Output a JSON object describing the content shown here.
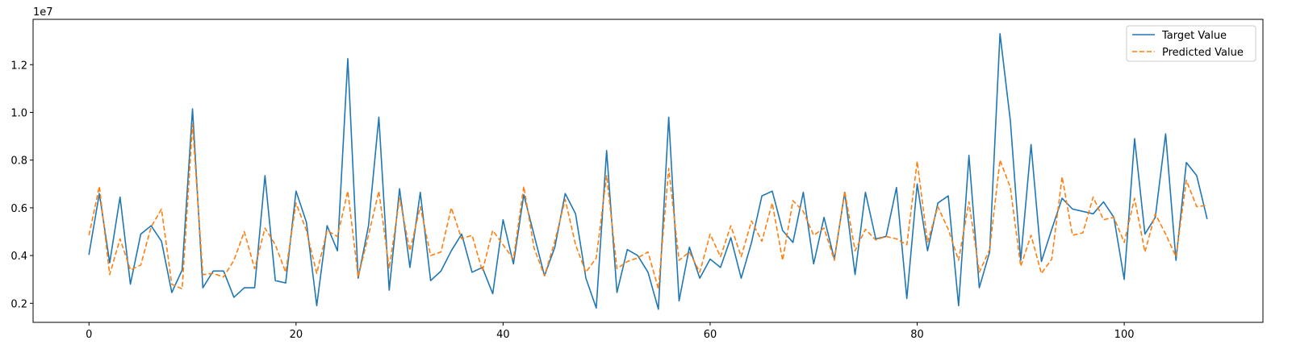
{
  "chart_data": {
    "type": "line",
    "title": "",
    "xlabel": "",
    "ylabel": "",
    "y_offset_label": "1e7",
    "xlim": [
      -5.4,
      113.4
    ],
    "ylim": [
      1200000,
      13900000
    ],
    "x_ticks": [
      0,
      20,
      40,
      60,
      80,
      100
    ],
    "x_tick_labels": [
      "0",
      "20",
      "40",
      "60",
      "80",
      "100"
    ],
    "y_ticks": [
      2000000,
      4000000,
      6000000,
      8000000,
      10000000,
      12000000
    ],
    "y_tick_labels": [
      "0.2",
      "0.4",
      "0.6",
      "0.8",
      "1.0",
      "1.2"
    ],
    "grid": false,
    "legend_position": "top-right",
    "series": [
      {
        "name": "Target Value",
        "color": "#1f77b4",
        "style": "solid",
        "values": [
          4050000,
          6600000,
          3700000,
          6450000,
          2800000,
          4900000,
          5250000,
          4600000,
          2450000,
          3400000,
          10150000,
          2650000,
          3350000,
          3350000,
          2250000,
          2650000,
          2650000,
          7350000,
          2950000,
          2850000,
          6700000,
          5400000,
          1900000,
          5250000,
          4200000,
          12250000,
          3050000,
          5250000,
          9800000,
          2550000,
          6800000,
          3500000,
          6650000,
          2950000,
          3350000,
          4200000,
          4900000,
          3300000,
          3500000,
          2400000,
          5500000,
          3650000,
          6550000,
          4850000,
          3150000,
          4350000,
          6600000,
          5750000,
          3050000,
          1800000,
          8400000,
          2450000,
          4250000,
          4000000,
          3300000,
          1750000,
          9800000,
          2100000,
          4350000,
          3050000,
          3850000,
          3500000,
          4750000,
          3050000,
          4550000,
          6500000,
          6700000,
          5050000,
          4550000,
          6650000,
          3650000,
          5600000,
          3850000,
          6650000,
          3200000,
          6650000,
          4700000,
          4800000,
          6850000,
          2200000,
          7000000,
          4200000,
          6200000,
          6500000,
          1900000,
          8200000,
          2650000,
          4150000,
          13300000,
          9650000,
          3800000,
          8650000,
          3750000,
          5100000,
          6400000,
          5950000,
          5850000,
          5750000,
          6250000,
          5600000,
          3000000,
          8900000,
          4900000,
          5600000,
          9100000,
          3800000,
          7900000,
          7350000,
          5550000
        ]
      },
      {
        "name": "Predicted Value",
        "color": "#ff7f0e",
        "style": "dashed",
        "values": [
          4850000,
          6900000,
          3200000,
          4700000,
          3400000,
          3600000,
          5200000,
          5950000,
          2800000,
          2600000,
          9500000,
          3200000,
          3250000,
          3100000,
          3800000,
          5000000,
          3450000,
          5150000,
          4450000,
          3300000,
          6200000,
          5050000,
          3250000,
          5050000,
          4800000,
          6700000,
          3100000,
          4850000,
          6700000,
          3450000,
          6400000,
          4200000,
          6050000,
          4000000,
          4150000,
          6000000,
          4700000,
          4850000,
          3350000,
          5050000,
          4450000,
          3850000,
          6900000,
          4300000,
          3150000,
          4600000,
          6350000,
          4450000,
          3300000,
          3900000,
          7350000,
          3450000,
          3750000,
          3900000,
          4150000,
          2600000,
          7650000,
          3800000,
          4150000,
          3300000,
          4900000,
          3950000,
          5250000,
          3950000,
          5450000,
          4600000,
          6200000,
          3800000,
          6300000,
          5850000,
          4850000,
          5150000,
          3800000,
          6700000,
          4200000,
          5100000,
          4650000,
          4800000,
          4700000,
          4450000,
          7950000,
          4550000,
          6050000,
          5100000,
          3800000,
          6250000,
          3300000,
          4250000,
          8000000,
          6850000,
          3550000,
          4850000,
          3250000,
          3850000,
          7300000,
          4850000,
          4950000,
          6450000,
          5500000,
          5600000,
          4550000,
          6400000,
          4150000,
          5750000,
          4900000,
          3950000,
          7150000,
          6050000,
          6100000
        ]
      }
    ]
  }
}
